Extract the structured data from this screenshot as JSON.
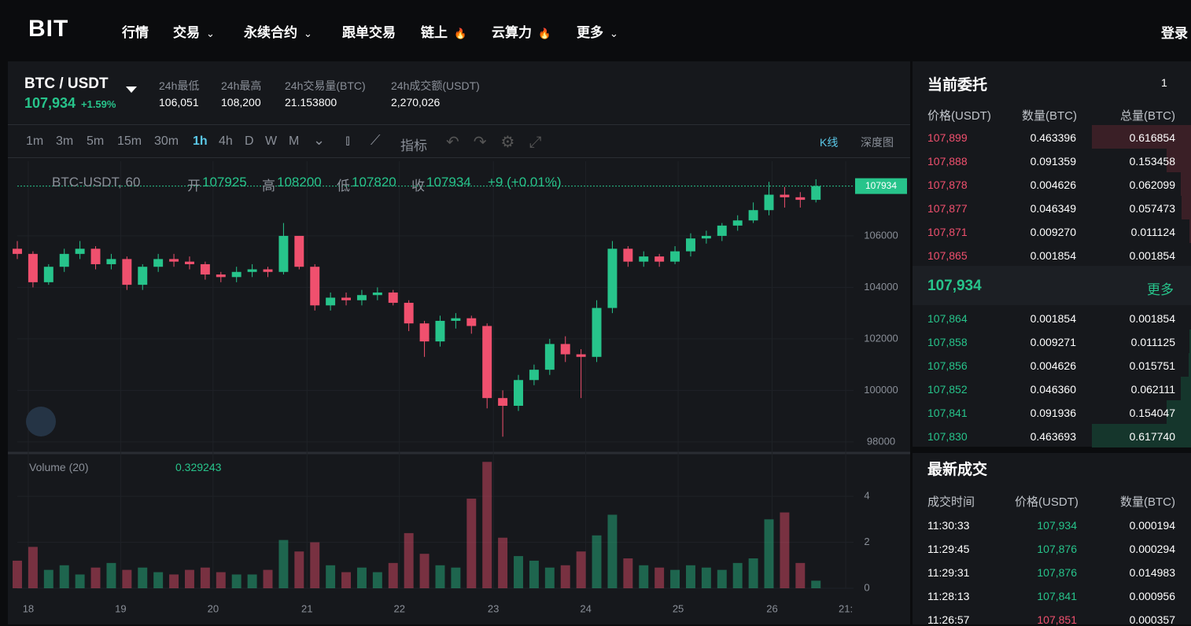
{
  "nav": {
    "logo": "BIT",
    "items": [
      "行情",
      "交易",
      "永续合约",
      "跟单交易",
      "链上",
      "云算力",
      "更多"
    ],
    "login": "登录"
  },
  "ticker": {
    "pair": "BTC / USDT",
    "price": "107,934",
    "change": "+1.59%",
    "stats": [
      {
        "label": "24h最低",
        "value": "106,051"
      },
      {
        "label": "24h最高",
        "value": "108,200"
      },
      {
        "label": "24h交易量(BTC)",
        "value": "21.153800"
      },
      {
        "label": "24h成交额(USDT)",
        "value": "2,270,026"
      }
    ]
  },
  "toolbar": {
    "intervals": [
      "1m",
      "3m",
      "5m",
      "15m",
      "30m",
      "1h",
      "4h",
      "D",
      "W",
      "M"
    ],
    "active": 5,
    "indicator": "指标",
    "views": [
      "K线",
      "深度图"
    ]
  },
  "chart_data": {
    "type": "candlestick",
    "symbol": "BTC-USDT, 60",
    "ohlc": {
      "labels": [
        "开",
        "高",
        "低",
        "收"
      ],
      "values": [
        107925,
        108200,
        107820,
        107934
      ],
      "change": "+9 (+0.01%)"
    },
    "last_price": 107934,
    "up_color": "#27c48b",
    "down_color": "#f0506e",
    "open": [
      105500,
      105300,
      104200,
      104800,
      105300,
      105500,
      104900,
      105100,
      104100,
      104800,
      105100,
      105000,
      104900,
      104500,
      104400,
      104600,
      104700,
      104600,
      106000,
      104800,
      103300,
      103600,
      103500,
      103700,
      103800,
      103400,
      102600,
      101900,
      102700,
      102800,
      102500,
      99700,
      99400,
      100400,
      100800,
      101800,
      101400,
      101300,
      103200,
      105500,
      105000,
      105200,
      105000,
      105400,
      105900,
      106000,
      106400,
      106600,
      107000,
      107600,
      107500,
      107400
    ],
    "high": [
      105800,
      105400,
      104900,
      105500,
      105800,
      105600,
      105300,
      105200,
      104900,
      105300,
      105300,
      105200,
      105000,
      104600,
      104800,
      104900,
      104800,
      106500,
      106000,
      104900,
      103800,
      103800,
      103900,
      104000,
      103900,
      103500,
      102700,
      102900,
      103000,
      102900,
      102600,
      100000,
      100600,
      101000,
      102000,
      102100,
      101600,
      103500,
      105800,
      105600,
      105400,
      105300,
      105600,
      106100,
      106200,
      106500,
      106800,
      107300,
      108100,
      107900,
      107700,
      108200
    ],
    "low": [
      105100,
      104000,
      104100,
      104600,
      105100,
      104700,
      104700,
      103900,
      103900,
      104600,
      104800,
      104700,
      104300,
      104200,
      104200,
      104400,
      104400,
      104500,
      104700,
      103100,
      103100,
      103300,
      103300,
      103500,
      103300,
      102300,
      101300,
      101700,
      102400,
      102200,
      99300,
      98200,
      99200,
      100200,
      100600,
      101100,
      99700,
      101100,
      103000,
      104800,
      104800,
      104800,
      104900,
      105200,
      105700,
      105800,
      106200,
      106500,
      106800,
      107100,
      107100,
      107300
    ],
    "close": [
      105300,
      104200,
      104800,
      105300,
      105500,
      104900,
      105100,
      104100,
      104800,
      105100,
      105000,
      104900,
      104500,
      104400,
      104600,
      104700,
      104600,
      106000,
      104800,
      103300,
      103600,
      103500,
      103700,
      103800,
      103400,
      102600,
      101900,
      102700,
      102800,
      102500,
      99700,
      99400,
      100400,
      100800,
      101800,
      101400,
      101300,
      103200,
      105500,
      105000,
      105200,
      105000,
      105400,
      105900,
      106000,
      106400,
      106600,
      107000,
      107600,
      107500,
      107400,
      107934
    ],
    "ylim": [
      97750,
      108900
    ],
    "yticks": [
      98000,
      100000,
      102000,
      104000,
      106000
    ],
    "xlim": [
      0,
      53.4
    ],
    "xticks": [
      {
        "value": 0.7,
        "label": "18"
      },
      {
        "value": 6.6,
        "label": "19"
      },
      {
        "value": 12.5,
        "label": "20"
      },
      {
        "value": 18.5,
        "label": "21"
      },
      {
        "value": 24.4,
        "label": "22"
      },
      {
        "value": 30.4,
        "label": "23"
      },
      {
        "value": 36.3,
        "label": "24"
      },
      {
        "value": 42.2,
        "label": "25"
      },
      {
        "value": 48.2,
        "label": "26"
      },
      {
        "value": 52.9,
        "label": "21:"
      }
    ],
    "volume": {
      "title": "Volume (20)",
      "ylim": [
        0,
        5.75
      ],
      "yticks": [
        0,
        2,
        4
      ],
      "values": [
        1.2,
        1.8,
        0.8,
        1.0,
        0.6,
        0.9,
        1.1,
        0.8,
        0.9,
        0.7,
        0.6,
        0.8,
        0.9,
        0.7,
        0.6,
        0.6,
        0.8,
        2.1,
        1.6,
        2.0,
        1.0,
        0.7,
        0.9,
        0.7,
        1.1,
        2.4,
        1.5,
        1.0,
        0.9,
        3.9,
        5.5,
        2.2,
        1.4,
        1.2,
        0.9,
        1.0,
        1.6,
        2.3,
        3.2,
        1.3,
        1.0,
        0.9,
        0.8,
        1.0,
        0.9,
        0.8,
        1.1,
        1.3,
        3.0,
        3.3,
        1.1,
        0.329243
      ]
    }
  },
  "order_book": {
    "title": "当前委托",
    "depth": "1",
    "headers": [
      "价格(USDT)",
      "数量(BTC)",
      "总量(BTC)"
    ],
    "asks": [
      [
        "107,899",
        "0.463396",
        "0.616854"
      ],
      [
        "107,888",
        "0.091359",
        "0.153458"
      ],
      [
        "107,878",
        "0.004626",
        "0.062099"
      ],
      [
        "107,877",
        "0.046349",
        "0.057473"
      ],
      [
        "107,871",
        "0.009270",
        "0.011124"
      ],
      [
        "107,865",
        "0.001854",
        "0.001854"
      ]
    ],
    "last": "107,934",
    "more": "更多",
    "bids": [
      [
        "107,864",
        "0.001854",
        "0.001854"
      ],
      [
        "107,858",
        "0.009271",
        "0.011125"
      ],
      [
        "107,856",
        "0.004626",
        "0.015751"
      ],
      [
        "107,852",
        "0.046360",
        "0.062111"
      ],
      [
        "107,841",
        "0.091936",
        "0.154047"
      ],
      [
        "107,830",
        "0.463693",
        "0.617740"
      ]
    ]
  },
  "trades": {
    "title": "最新成交",
    "headers": [
      "成交时间",
      "价格(USDT)",
      "数量(BTC)"
    ],
    "rows": [
      {
        "time": "11:30:33",
        "price": "107,934",
        "qty": "0.000194",
        "side": "buy"
      },
      {
        "time": "11:29:45",
        "price": "107,876",
        "qty": "0.000294",
        "side": "buy"
      },
      {
        "time": "11:29:31",
        "price": "107,876",
        "qty": "0.014983",
        "side": "buy"
      },
      {
        "time": "11:28:13",
        "price": "107,841",
        "qty": "0.000956",
        "side": "buy"
      },
      {
        "time": "11:26:57",
        "price": "107,851",
        "qty": "0.000357",
        "side": "sell"
      }
    ]
  }
}
